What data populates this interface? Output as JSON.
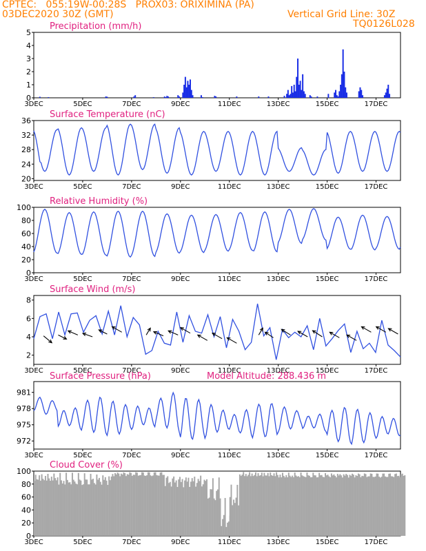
{
  "header": {
    "line1_left": "CPTEC:   055:19W-00:28S   PROX03: ORIXIMINA (PA)",
    "line2_left": "03DEC2020 30Z (GMT)",
    "line2_right": "Vertical Grid Line: 30Z",
    "line3_right": "TQ0126L028",
    "title_color": "#ff7f00",
    "label_color": "#e0207f",
    "line_color": "#3050e0",
    "bar_color": "#1a2ee6",
    "cloud_color": "#a8a8a8"
  },
  "x_ticks": [
    "3DEC",
    "5DEC",
    "7DEC",
    "9DEC",
    "11DEC",
    "13DEC",
    "15DEC",
    "17DEC"
  ],
  "chart_data": [
    {
      "type": "bar",
      "title": "Precipitation (mm/h)",
      "ylim": [
        0,
        5
      ],
      "yticks": [
        "0",
        "1",
        "2",
        "3",
        "4",
        "5"
      ],
      "points": [
        [
          0.25,
          0.08
        ],
        [
          0.6,
          0.05
        ],
        [
          2.95,
          0.1
        ],
        [
          3.0,
          0.08
        ],
        [
          4.1,
          0.1
        ],
        [
          4.15,
          0.2
        ],
        [
          4.9,
          0.05
        ],
        [
          5.35,
          0.1
        ],
        [
          5.4,
          0.05
        ],
        [
          5.45,
          0.15
        ],
        [
          5.5,
          0.1
        ],
        [
          5.9,
          0.2
        ],
        [
          5.95,
          0.1
        ],
        [
          6.1,
          0.4
        ],
        [
          6.15,
          1.0
        ],
        [
          6.2,
          1.6
        ],
        [
          6.25,
          0.8
        ],
        [
          6.3,
          1.3
        ],
        [
          6.35,
          1.0
        ],
        [
          6.4,
          1.4
        ],
        [
          6.45,
          0.6
        ],
        [
          6.5,
          0.2
        ],
        [
          6.85,
          0.2
        ],
        [
          6.9,
          0.05
        ],
        [
          7.4,
          0.15
        ],
        [
          7.45,
          0.1
        ],
        [
          8.3,
          0.1
        ],
        [
          9.2,
          0.1
        ],
        [
          9.6,
          0.1
        ],
        [
          10.25,
          0.15
        ],
        [
          10.35,
          0.3
        ],
        [
          10.4,
          0.6
        ],
        [
          10.45,
          0.2
        ],
        [
          10.5,
          0.3
        ],
        [
          10.55,
          0.9
        ],
        [
          10.6,
          0.4
        ],
        [
          10.65,
          1.0
        ],
        [
          10.7,
          0.5
        ],
        [
          10.75,
          1.6
        ],
        [
          10.8,
          3.0
        ],
        [
          10.85,
          1.0
        ],
        [
          10.9,
          1.3
        ],
        [
          10.95,
          0.6
        ],
        [
          11.0,
          1.8
        ],
        [
          11.05,
          0.5
        ],
        [
          11.1,
          0.3
        ],
        [
          11.3,
          0.2
        ],
        [
          11.35,
          0.1
        ],
        [
          11.6,
          0.1
        ],
        [
          12.05,
          0.3
        ],
        [
          12.3,
          0.4
        ],
        [
          12.35,
          0.6
        ],
        [
          12.4,
          0.2
        ],
        [
          12.45,
          0.1
        ],
        [
          12.5,
          0.5
        ],
        [
          12.55,
          1.0
        ],
        [
          12.6,
          1.8
        ],
        [
          12.65,
          3.7
        ],
        [
          12.7,
          2.0
        ],
        [
          12.75,
          0.8
        ],
        [
          12.8,
          0.4
        ],
        [
          13.3,
          0.5
        ],
        [
          13.35,
          0.8
        ],
        [
          13.4,
          0.6
        ],
        [
          13.45,
          0.2
        ],
        [
          14.35,
          0.2
        ],
        [
          14.4,
          0.4
        ],
        [
          14.45,
          0.7
        ],
        [
          14.5,
          1.0
        ],
        [
          14.55,
          0.3
        ]
      ]
    },
    {
      "type": "line",
      "title": "Surface Temperature (nC)",
      "ylim": [
        19.5,
        36
      ],
      "yticks": [
        "20",
        "24",
        "28",
        "32",
        "36"
      ],
      "curve": {
        "start": 0,
        "end": 15,
        "step": 0.05,
        "min": [
          22,
          21,
          22,
          21,
          22.5,
          21.5,
          21,
          22,
          21,
          21,
          22,
          21,
          21.5,
          22,
          22,
          21.5
        ],
        "max": [
          33.5,
          34,
          34,
          35,
          35,
          34,
          33,
          33,
          33,
          33,
          28.5,
          28,
          33,
          33,
          33,
          33
        ],
        "first_min": 20,
        "phase": 0.55
      }
    },
    {
      "type": "line",
      "title": "Relative Humidity (%)",
      "ylim": [
        0,
        100
      ],
      "yticks": [
        "0",
        "20",
        "40",
        "60",
        "80",
        "100"
      ],
      "curve": {
        "start": 0,
        "end": 15,
        "step": 0.05,
        "min": [
          30,
          28,
          27,
          24,
          25,
          30,
          31,
          33,
          34,
          32,
          45,
          50,
          36,
          35,
          36,
          38
        ],
        "max": [
          97,
          92,
          93,
          94,
          94,
          90,
          88,
          89,
          92,
          93,
          97,
          98,
          85,
          88,
          86,
          86
        ],
        "first_max": 98,
        "phase": 0.05
      }
    },
    {
      "type": "line",
      "title": "Surface Wind (m/s)",
      "ylim": [
        1,
        8.5
      ],
      "yticks": [
        "2",
        "4",
        "6",
        "8"
      ],
      "values": [
        3.8,
        6.2,
        6.5,
        3.8,
        6.7,
        4.2,
        6.5,
        6.6,
        4.5,
        5.8,
        6.3,
        4.3,
        6.8,
        4.2,
        7.4,
        4.0,
        6.1,
        5.3,
        2.1,
        2.5,
        4.6,
        3.3,
        3.1,
        6.7,
        3.4,
        6.3,
        4.6,
        4.4,
        6.4,
        4.0,
        6.2,
        2.8,
        5.9,
        4.6,
        2.6,
        3.4,
        7.6,
        4.1,
        5.0,
        1.5,
        4.8,
        3.9,
        4.5,
        4.0,
        5.2,
        2.6,
        6.0,
        3.0,
        3.8,
        4.7,
        5.4,
        2.3,
        4.6,
        2.7,
        3.3,
        2.3,
        5.8,
        3.1,
        2.5,
        1.8
      ],
      "arrows": [
        [
          0.4,
          4.1,
          12,
          10
        ],
        [
          1.0,
          4.2,
          12,
          6
        ],
        [
          1.8,
          4.2,
          -14,
          -6
        ],
        [
          2.4,
          4.0,
          -14,
          -5
        ],
        [
          3.0,
          4.3,
          -12,
          -6
        ],
        [
          3.6,
          4.5,
          -14,
          -8
        ],
        [
          4.6,
          4.2,
          6,
          -10
        ],
        [
          5.3,
          4.1,
          -14,
          -6
        ],
        [
          5.9,
          4.2,
          -14,
          -6
        ],
        [
          6.4,
          4.4,
          -14,
          -8
        ],
        [
          7.1,
          3.6,
          -14,
          -8
        ],
        [
          7.7,
          3.8,
          -14,
          -8
        ],
        [
          8.3,
          3.3,
          -14,
          -8
        ],
        [
          9.2,
          4.2,
          6,
          -10
        ],
        [
          9.8,
          3.9,
          -12,
          -8
        ],
        [
          10.5,
          4.2,
          -13,
          -8
        ],
        [
          11.2,
          4.0,
          -14,
          -8
        ],
        [
          11.8,
          4.0,
          -14,
          -9
        ],
        [
          12.5,
          3.9,
          -14,
          -8
        ],
        [
          13.2,
          3.6,
          -14,
          -8
        ],
        [
          13.8,
          4.5,
          -14,
          -8
        ],
        [
          14.4,
          4.5,
          -14,
          -8
        ],
        [
          14.9,
          4.3,
          -14,
          -8
        ]
      ]
    },
    {
      "type": "line",
      "title": "Surface Pressure (hPa)",
      "subtitle": "Model Altitude: 288.436 m",
      "ylim": [
        970.5,
        983
      ],
      "yticks": [
        "972",
        "975",
        "978",
        "981"
      ],
      "curve": {
        "start": 0,
        "end": 15,
        "step": 0.05,
        "first_min": 977.5,
        "min": [
          976.4,
          972.9,
          973.3,
          972.9,
          972.7,
          973.5,
          972.2,
          971.7,
          972.1,
          972.7,
          973.5,
          972.9,
          971.6,
          971.3,
          971.2,
          971.0
        ],
        "max": [
          980.3,
          979.7,
          980.2,
          979.5,
          980.4,
          981.4,
          980.0,
          980.1,
          978.7,
          979.0,
          978.7,
          978.2,
          978.3,
          978.0,
          978.3,
          977.7
        ],
        "phase": 0.4,
        "secondary": 1.7
      }
    },
    {
      "type": "area",
      "title": "Cloud Cover (%)",
      "ylim": [
        0,
        100
      ],
      "yticks": [
        "0",
        "20",
        "40",
        "60",
        "80",
        "100"
      ],
      "segments": [
        [
          0,
          1.0,
          85,
          97
        ],
        [
          1.0,
          3.2,
          78,
          98
        ],
        [
          3.2,
          5.3,
          92,
          100
        ],
        [
          5.3,
          7.0,
          75,
          97
        ],
        [
          7.0,
          7.6,
          55,
          92
        ],
        [
          7.6,
          8.0,
          10,
          60
        ],
        [
          8.0,
          8.4,
          45,
          80
        ],
        [
          8.4,
          10.0,
          92,
          99
        ],
        [
          10.0,
          15.2,
          90,
          98
        ]
      ]
    }
  ]
}
